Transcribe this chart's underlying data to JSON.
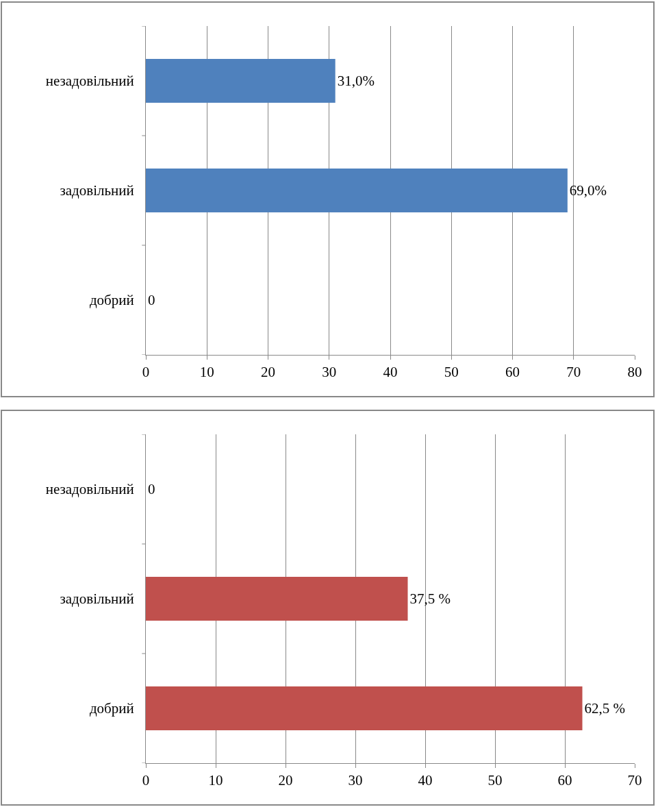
{
  "chart_data": [
    {
      "type": "bar",
      "orientation": "horizontal",
      "categories": [
        "незадовільний",
        "задовільний",
        "добрий"
      ],
      "values": [
        31,
        69,
        0
      ],
      "value_labels": [
        "31,0%",
        "69,0%",
        "0"
      ],
      "color": "#4f81bd",
      "xlim": [
        0,
        80
      ],
      "xticks": [
        0,
        10,
        20,
        30,
        40,
        50,
        60,
        70,
        80
      ],
      "grid": "x"
    },
    {
      "type": "bar",
      "orientation": "horizontal",
      "categories": [
        "незадовільний",
        "задовільний",
        "добрий"
      ],
      "values": [
        0,
        37.5,
        62.5
      ],
      "value_labels": [
        "0",
        "37,5 %",
        "62,5 %"
      ],
      "color": "#c0504d",
      "xlim": [
        0,
        70
      ],
      "xticks": [
        0,
        10,
        20,
        30,
        40,
        50,
        60,
        70
      ],
      "grid": "x"
    }
  ]
}
